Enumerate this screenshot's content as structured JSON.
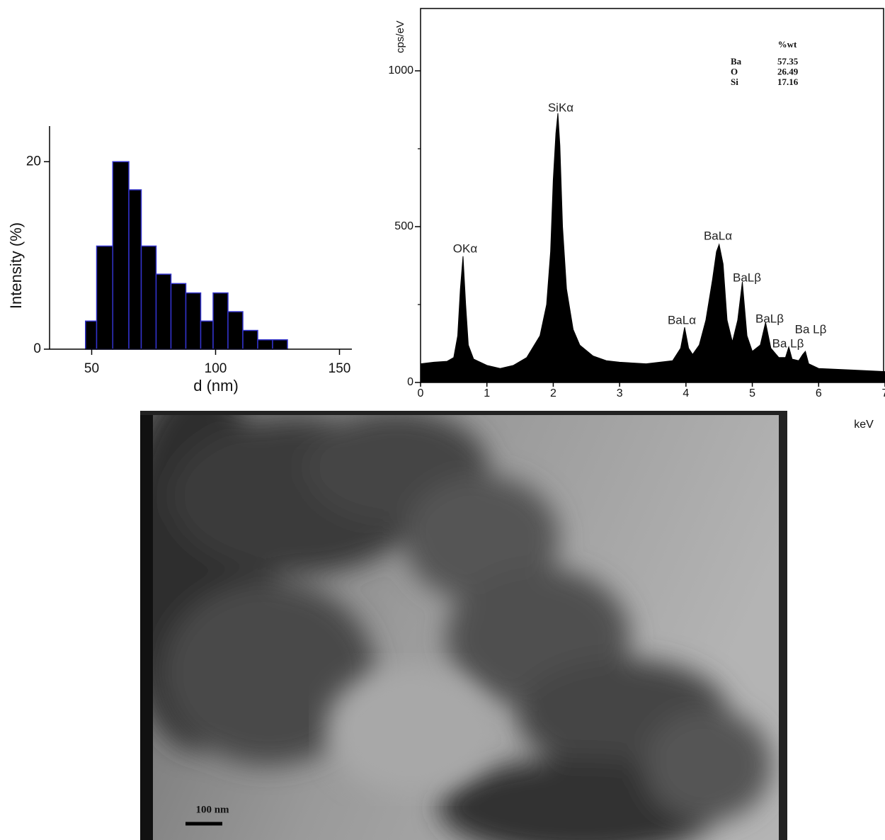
{
  "chart_data": [
    {
      "type": "histogram",
      "bins": [
        47.5,
        52,
        58.5,
        65,
        70,
        76,
        82,
        88,
        94,
        99,
        105,
        111,
        117,
        123,
        129
      ],
      "values": [
        3,
        11,
        20,
        17,
        11,
        8,
        7,
        6,
        3,
        6,
        4,
        2,
        1,
        1
      ],
      "color": "#000000",
      "edge_color": "#3333cc",
      "xlim": [
        33,
        155
      ],
      "ylim": [
        0,
        23.8
      ],
      "xticks": [
        50,
        100,
        150
      ],
      "yticks": [
        0,
        20
      ],
      "xlabel": "d (nm)",
      "ylabel": "Intensity (%)"
    },
    {
      "type": "area",
      "x": [
        0,
        0.2,
        0.4,
        0.5,
        0.56,
        0.6,
        0.64,
        0.68,
        0.72,
        0.8,
        1.0,
        1.2,
        1.4,
        1.6,
        1.8,
        1.9,
        1.96,
        2.0,
        2.04,
        2.07,
        2.1,
        2.14,
        2.2,
        2.3,
        2.4,
        2.6,
        2.8,
        3.0,
        3.4,
        3.8,
        3.92,
        3.98,
        4.04,
        4.1,
        4.2,
        4.3,
        4.4,
        4.46,
        4.5,
        4.56,
        4.62,
        4.7,
        4.78,
        4.85,
        4.92,
        5.0,
        5.12,
        5.2,
        5.28,
        5.4,
        5.5,
        5.55,
        5.6,
        5.7,
        5.76,
        5.8,
        5.85,
        6.0,
        6.5,
        7.0
      ],
      "values": [
        60,
        65,
        68,
        80,
        150,
        300,
        405,
        250,
        120,
        75,
        55,
        45,
        55,
        80,
        150,
        250,
        420,
        650,
        800,
        864,
        760,
        500,
        300,
        170,
        120,
        85,
        70,
        65,
        60,
        70,
        110,
        177,
        110,
        90,
        120,
        200,
        330,
        420,
        443,
        380,
        200,
        130,
        200,
        323,
        150,
        100,
        120,
        193,
        110,
        80,
        80,
        114,
        75,
        70,
        90,
        100,
        60,
        45,
        40,
        35
      ],
      "color": "#000000",
      "xlim": [
        0,
        7
      ],
      "ylim": [
        0,
        1200
      ],
      "xticks": [
        0,
        1,
        2,
        3,
        4,
        5,
        6,
        7
      ],
      "yticks": [
        0,
        500,
        1000
      ],
      "yminor_ticks": [
        250,
        750
      ],
      "xlabel": "keV",
      "ylabel": "cps/eV",
      "annotations": [
        "OKα",
        "SiKα",
        "BaLα",
        "BaLα",
        "BaLβ",
        "BaLβ",
        "Ba Lβ",
        "Ba Lβ"
      ],
      "table": {
        "header": "%wt",
        "rows": [
          [
            "Ba",
            "57.35"
          ],
          [
            "O",
            "26.49"
          ],
          [
            "Si",
            "17.16"
          ]
        ]
      }
    }
  ],
  "image": {
    "scale_bar": "100 nm"
  }
}
